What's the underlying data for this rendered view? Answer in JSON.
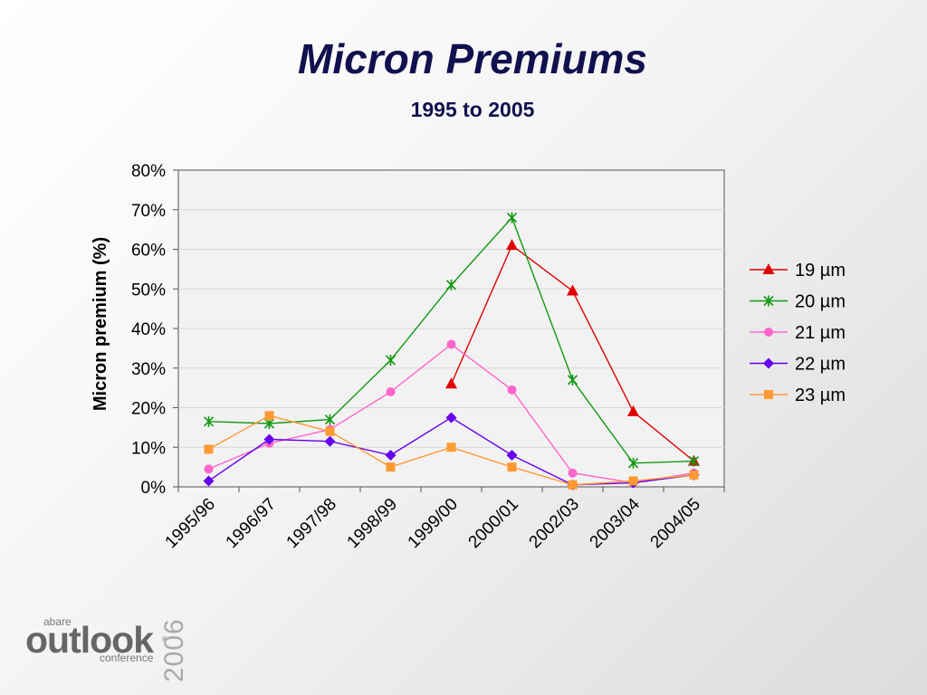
{
  "slide": {
    "title": "Micron Premiums",
    "subtitle": "1995 to 2005"
  },
  "logo": {
    "abare": "abare",
    "outlook": "outlook",
    "registered": "®",
    "conference": "conference",
    "year": "2006"
  },
  "chart_data": {
    "type": "line",
    "title": "Micron Premiums",
    "subtitle": "1995 to 2005",
    "xlabel": "",
    "ylabel": "Micron premium (%)",
    "ylim": [
      0,
      80
    ],
    "yticks": [
      "0%",
      "10%",
      "20%",
      "30%",
      "40%",
      "50%",
      "60%",
      "70%",
      "80%"
    ],
    "categories": [
      "1995/96",
      "1996/97",
      "1997/98",
      "1998/99",
      "1999/00",
      "2000/01",
      "2002/03",
      "2003/04",
      "2004/05"
    ],
    "grid": true,
    "legend": "right",
    "series": [
      {
        "name": "19 µm",
        "color": "#e00000",
        "marker": "triangle",
        "values": [
          null,
          null,
          null,
          null,
          26,
          61,
          49.5,
          19,
          6.5
        ]
      },
      {
        "name": "20 µm",
        "color": "#119911",
        "marker": "star",
        "values": [
          16.5,
          16,
          17,
          32,
          51,
          68,
          27,
          6,
          6.5
        ]
      },
      {
        "name": "21 µm",
        "color": "#ff66cc",
        "marker": "circle",
        "values": [
          4.5,
          11,
          14.5,
          24,
          36,
          24.5,
          3.5,
          1,
          3.5
        ]
      },
      {
        "name": "22 µm",
        "color": "#6600ee",
        "marker": "diamond",
        "values": [
          1.5,
          12,
          11.5,
          8,
          17.5,
          8,
          0.5,
          1,
          3
        ]
      },
      {
        "name": "23 µm",
        "color": "#ff9933",
        "marker": "square",
        "values": [
          9.5,
          18,
          14,
          5,
          10,
          5,
          0.5,
          1.5,
          3
        ]
      }
    ]
  }
}
